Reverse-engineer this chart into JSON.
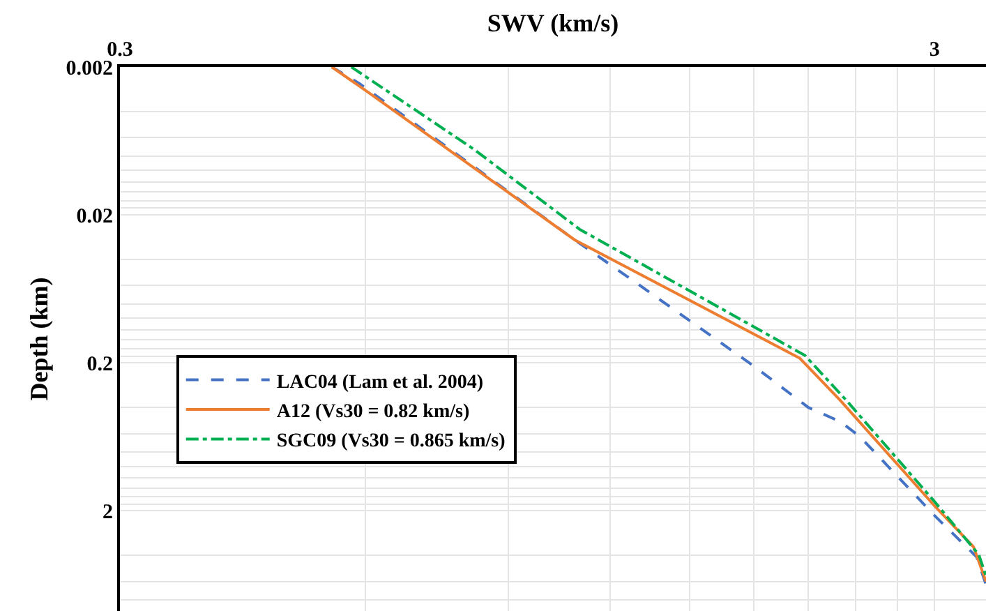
{
  "chart_data": {
    "type": "line",
    "xlabel": "SWV (km/s)",
    "ylabel": "Depth (km)",
    "log": "xy",
    "grid": true,
    "legend": "bottom left",
    "xlim": [
      0.3,
      3.47
    ],
    "ylim": [
      9.5,
      0.002
    ],
    "xticks": [
      0.3,
      {
        "value": 0.6,
        "label": null
      },
      {
        "value": 0.9,
        "label": null
      },
      {
        "value": 1.2,
        "label": null
      },
      {
        "value": 1.5,
        "label": null
      },
      {
        "value": 1.8,
        "label": null
      },
      {
        "value": 2.1,
        "label": null
      },
      {
        "value": 2.4,
        "label": null
      },
      {
        "value": 2.7,
        "label": null
      },
      3
    ],
    "yticks": [
      0.002,
      {
        "value": 0.004,
        "label": null
      },
      {
        "value": 0.006,
        "label": null
      },
      {
        "value": 0.008,
        "label": null
      },
      {
        "value": 0.01,
        "label": null
      },
      {
        "value": 0.012,
        "label": null
      },
      {
        "value": 0.014,
        "label": null
      },
      {
        "value": 0.016,
        "label": null
      },
      {
        "value": 0.018,
        "label": null
      },
      0.02,
      {
        "value": 0.04,
        "label": null
      },
      {
        "value": 0.06,
        "label": null
      },
      {
        "value": 0.08,
        "label": null
      },
      {
        "value": 0.1,
        "label": null
      },
      {
        "value": 0.12,
        "label": null
      },
      {
        "value": 0.14,
        "label": null
      },
      {
        "value": 0.16,
        "label": null
      },
      {
        "value": 0.18,
        "label": null
      },
      0.2,
      {
        "value": 0.4,
        "label": null
      },
      {
        "value": 0.6,
        "label": null
      },
      {
        "value": 0.8,
        "label": null
      },
      {
        "value": 1,
        "label": null
      },
      {
        "value": 1.2,
        "label": null
      },
      {
        "value": 1.4,
        "label": null
      },
      {
        "value": 1.6,
        "label": null
      },
      {
        "value": 1.8,
        "label": null
      },
      2,
      {
        "value": 4,
        "label": null
      },
      {
        "value": 6,
        "label": null
      },
      {
        "value": 8,
        "label": null
      }
    ],
    "series": [
      {
        "name": "LAC04 (Lam et al. 2004)",
        "color": "#4472c4",
        "line_style": "dashed",
        "x": [
          0.546,
          0.591,
          1.085,
          1.27,
          1.8,
          2.1,
          2.3,
          2.43,
          3.0,
          3.38,
          3.47
        ],
        "values": [
          0.002,
          0.0026,
          0.0295,
          0.054,
          0.21,
          0.4,
          0.5,
          0.63,
          2.15,
          4.1,
          6.3
        ]
      },
      {
        "name": "A12 (Vs30 = 0.82 km/s)",
        "color": "#ed7d31",
        "line_style": "solid",
        "x": [
          0.546,
          0.607,
          1.085,
          2.05,
          2.3,
          3.0,
          3.35,
          3.47
        ],
        "values": [
          0.002,
          0.003,
          0.0295,
          0.186,
          0.36,
          1.85,
          3.5,
          6.0
        ]
      },
      {
        "name": "SGC09 (Vs30 = 0.865 km/s)",
        "color": "#00b050",
        "line_style": "dashdot",
        "x": [
          0.577,
          0.816,
          1.1,
          2.08,
          2.34,
          3.0,
          3.4,
          3.47
        ],
        "values": [
          0.002,
          0.0072,
          0.025,
          0.178,
          0.36,
          1.73,
          3.95,
          5.5
        ]
      }
    ]
  }
}
